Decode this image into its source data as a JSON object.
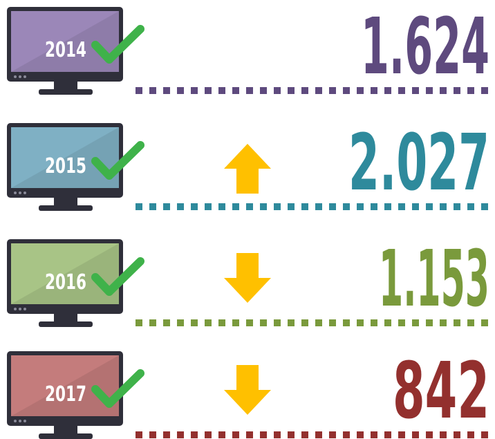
{
  "rows": [
    {
      "year": "2014",
      "value": "1.624",
      "color": "#5e4a7e",
      "screen": "#9b87b8"
    },
    {
      "year": "2015",
      "value": "2.027",
      "color": "#2e8a9c",
      "screen": "#7fb0c4",
      "trend": "up"
    },
    {
      "year": "2016",
      "value": "1.153",
      "color": "#7a9a3c",
      "screen": "#a8c486",
      "trend": "down"
    },
    {
      "year": "2017",
      "value": "842",
      "color": "#93302e",
      "screen": "#c47c7c",
      "trend": "down"
    }
  ]
}
